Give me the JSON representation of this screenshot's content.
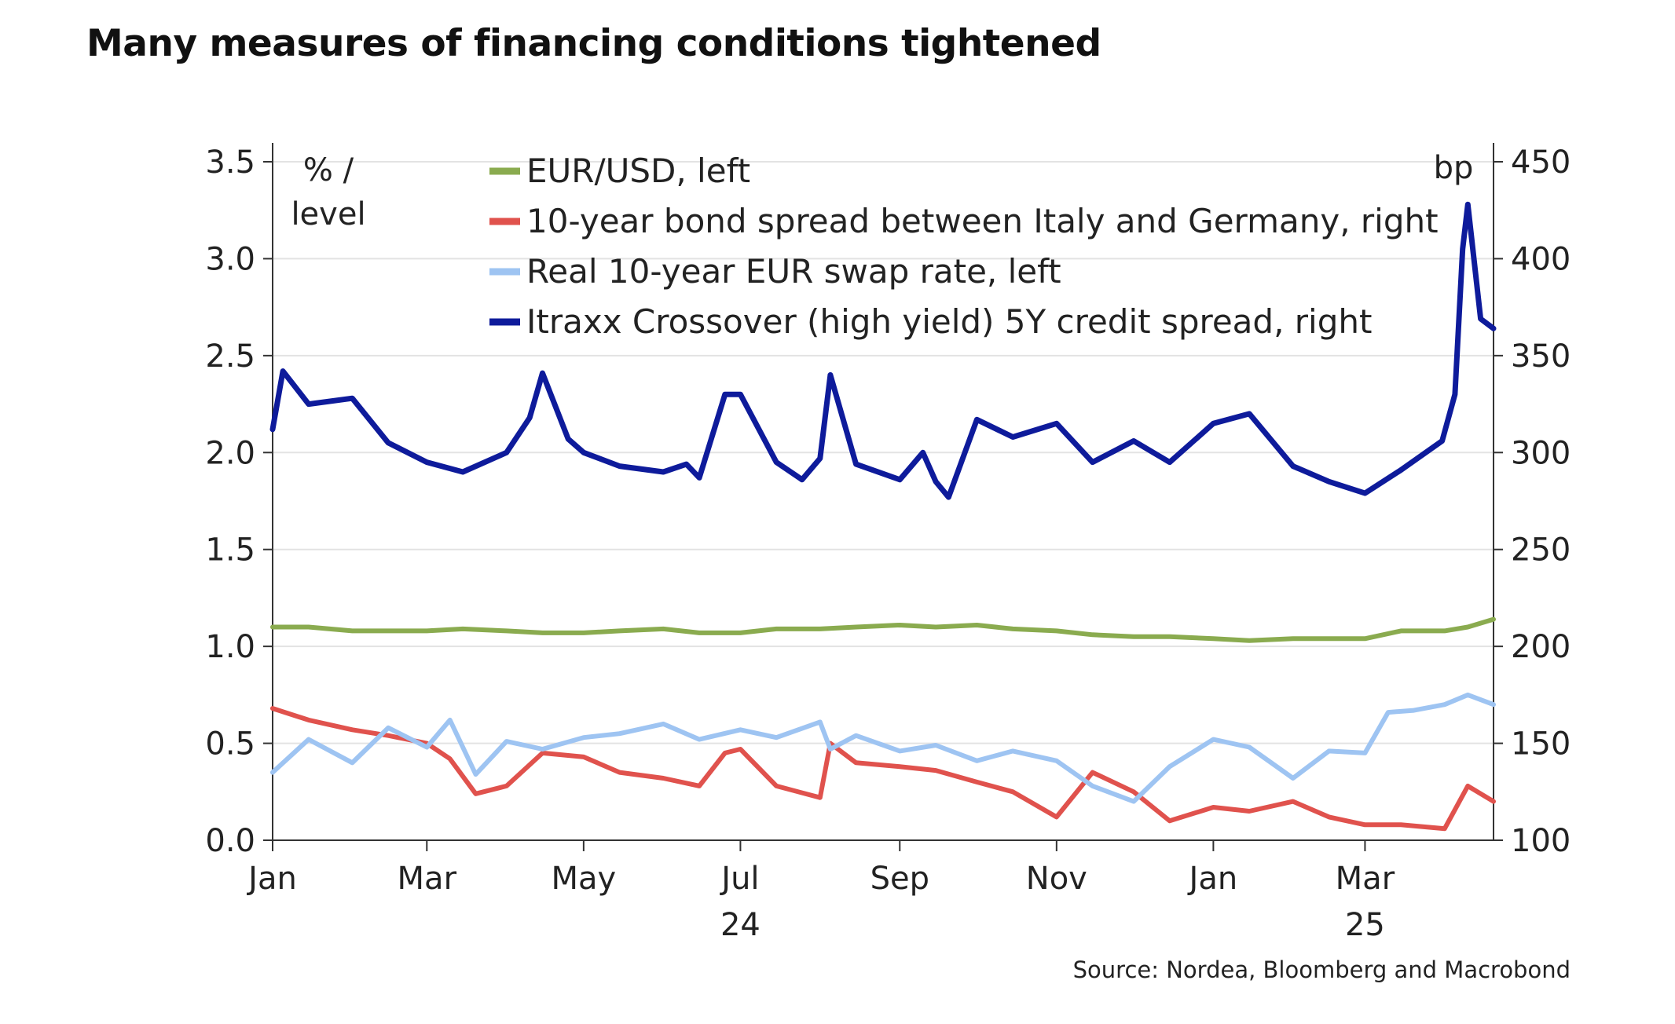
{
  "title": "Many measures of financing conditions tightened",
  "source": "Source: Nordea, Bloomberg and Macrobond",
  "chart_data": {
    "type": "line",
    "title": "Many measures of financing conditions tightened",
    "left_axis": {
      "unit_label": [
        "% /",
        "level"
      ],
      "ylim": [
        0,
        3.5
      ],
      "ticks": [
        0.0,
        0.5,
        1.0,
        1.5,
        2.0,
        2.5,
        3.0,
        3.5
      ],
      "tick_labels": [
        "0.0",
        "0.5",
        "1.0",
        "1.5",
        "2.0",
        "2.5",
        "3.0",
        "3.5"
      ]
    },
    "right_axis": {
      "unit_label": "bp",
      "ylim": [
        100,
        450
      ],
      "ticks": [
        100,
        150,
        200,
        250,
        300,
        350,
        400,
        450
      ],
      "tick_labels": [
        "100",
        "150",
        "200",
        "250",
        "300",
        "350",
        "400",
        "450"
      ]
    },
    "x_axis": {
      "xlim": [
        "2024-01-01",
        "2025-04-20"
      ],
      "ticks": [
        "2024-01-01",
        "2024-03-01",
        "2024-05-01",
        "2024-07-01",
        "2024-09-01",
        "2024-11-01",
        "2025-01-01",
        "2025-03-01"
      ],
      "tick_labels": [
        "Jan",
        "Mar",
        "May",
        "Jul",
        "Sep",
        "Nov",
        "Jan",
        "Mar"
      ],
      "year_labels": [
        {
          "at": "2024-07-01",
          "label": "24"
        },
        {
          "at": "2025-03-01",
          "label": "25"
        }
      ]
    },
    "grid": true,
    "legend_position": "top-center",
    "series": [
      {
        "name": "EUR/USD, left",
        "axis": "left",
        "color": "#8aab4f",
        "x": [
          "2024-01-01",
          "2024-01-15",
          "2024-02-01",
          "2024-02-15",
          "2024-03-01",
          "2024-03-15",
          "2024-04-01",
          "2024-04-15",
          "2024-05-01",
          "2024-05-15",
          "2024-06-01",
          "2024-06-15",
          "2024-07-01",
          "2024-07-15",
          "2024-08-01",
          "2024-08-15",
          "2024-09-01",
          "2024-09-15",
          "2024-10-01",
          "2024-10-15",
          "2024-11-01",
          "2024-11-15",
          "2024-12-01",
          "2024-12-15",
          "2025-01-01",
          "2025-01-15",
          "2025-02-01",
          "2025-02-15",
          "2025-03-01",
          "2025-03-15",
          "2025-04-01",
          "2025-04-10",
          "2025-04-20"
        ],
        "y": [
          1.1,
          1.1,
          1.08,
          1.08,
          1.08,
          1.09,
          1.08,
          1.07,
          1.07,
          1.08,
          1.09,
          1.07,
          1.07,
          1.09,
          1.09,
          1.1,
          1.11,
          1.1,
          1.11,
          1.09,
          1.08,
          1.06,
          1.05,
          1.05,
          1.04,
          1.03,
          1.04,
          1.04,
          1.04,
          1.08,
          1.08,
          1.1,
          1.14
        ]
      },
      {
        "name": "10-year bond spread between Italy and Germany, right",
        "axis": "right",
        "color": "#e0524d",
        "x": [
          "2024-01-01",
          "2024-01-15",
          "2024-02-01",
          "2024-02-15",
          "2024-03-01",
          "2024-03-10",
          "2024-03-20",
          "2024-04-01",
          "2024-04-15",
          "2024-05-01",
          "2024-05-15",
          "2024-06-01",
          "2024-06-15",
          "2024-06-25",
          "2024-07-01",
          "2024-07-15",
          "2024-08-01",
          "2024-08-05",
          "2024-08-15",
          "2024-09-01",
          "2024-09-15",
          "2024-10-01",
          "2024-10-15",
          "2024-11-01",
          "2024-11-15",
          "2024-12-01",
          "2024-12-15",
          "2025-01-01",
          "2025-01-15",
          "2025-02-01",
          "2025-02-15",
          "2025-03-01",
          "2025-03-15",
          "2025-04-01",
          "2025-04-10",
          "2025-04-20"
        ],
        "y": [
          168,
          162,
          157,
          154,
          150,
          142,
          124,
          128,
          145,
          143,
          135,
          132,
          128,
          145,
          147,
          128,
          122,
          150,
          140,
          138,
          136,
          130,
          125,
          112,
          135,
          125,
          110,
          117,
          115,
          120,
          112,
          108,
          108,
          106,
          128,
          120
        ]
      },
      {
        "name": "Real 10-year EUR swap rate, left",
        "axis": "left",
        "color": "#9ec4f2",
        "x": [
          "2024-01-01",
          "2024-01-15",
          "2024-02-01",
          "2024-02-15",
          "2024-03-01",
          "2024-03-10",
          "2024-03-20",
          "2024-04-01",
          "2024-04-15",
          "2024-05-01",
          "2024-05-15",
          "2024-06-01",
          "2024-06-15",
          "2024-07-01",
          "2024-07-15",
          "2024-08-01",
          "2024-08-05",
          "2024-08-15",
          "2024-09-01",
          "2024-09-15",
          "2024-10-01",
          "2024-10-15",
          "2024-11-01",
          "2024-11-15",
          "2024-12-01",
          "2024-12-15",
          "2025-01-01",
          "2025-01-15",
          "2025-02-01",
          "2025-02-15",
          "2025-03-01",
          "2025-03-10",
          "2025-03-20",
          "2025-04-01",
          "2025-04-10",
          "2025-04-20"
        ],
        "y": [
          0.35,
          0.52,
          0.4,
          0.58,
          0.48,
          0.62,
          0.34,
          0.51,
          0.47,
          0.53,
          0.55,
          0.6,
          0.52,
          0.57,
          0.53,
          0.61,
          0.47,
          0.54,
          0.46,
          0.49,
          0.41,
          0.46,
          0.41,
          0.28,
          0.2,
          0.38,
          0.52,
          0.48,
          0.32,
          0.46,
          0.45,
          0.66,
          0.67,
          0.7,
          0.75,
          0.7
        ]
      },
      {
        "name": "Itraxx Crossover (high yield) 5Y credit spread, right",
        "axis": "right",
        "color": "#0e1b9b",
        "x": [
          "2024-01-01",
          "2024-01-05",
          "2024-01-15",
          "2024-02-01",
          "2024-02-15",
          "2024-03-01",
          "2024-03-15",
          "2024-04-01",
          "2024-04-10",
          "2024-04-15",
          "2024-04-25",
          "2024-05-01",
          "2024-05-15",
          "2024-06-01",
          "2024-06-10",
          "2024-06-15",
          "2024-06-25",
          "2024-07-01",
          "2024-07-15",
          "2024-07-25",
          "2024-08-01",
          "2024-08-05",
          "2024-08-15",
          "2024-09-01",
          "2024-09-10",
          "2024-09-15",
          "2024-09-20",
          "2024-10-01",
          "2024-10-15",
          "2024-11-01",
          "2024-11-15",
          "2024-12-01",
          "2024-12-15",
          "2025-01-01",
          "2025-01-15",
          "2025-02-01",
          "2025-02-15",
          "2025-03-01",
          "2025-03-15",
          "2025-03-31",
          "2025-04-05",
          "2025-04-08",
          "2025-04-10",
          "2025-04-15",
          "2025-04-20"
        ],
        "y": [
          312,
          342,
          325,
          328,
          305,
          295,
          290,
          300,
          318,
          341,
          307,
          300,
          293,
          290,
          294,
          287,
          330,
          330,
          295,
          286,
          297,
          340,
          294,
          286,
          300,
          285,
          277,
          317,
          308,
          315,
          295,
          306,
          295,
          315,
          320,
          293,
          285,
          279,
          291,
          306,
          330,
          405,
          428,
          369,
          364
        ]
      }
    ]
  }
}
